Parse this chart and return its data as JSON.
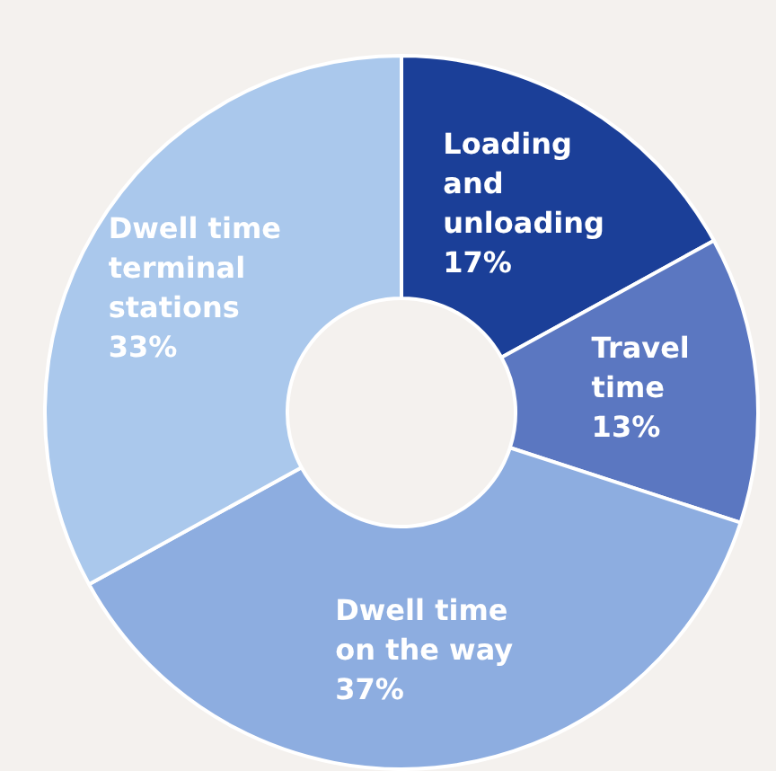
{
  "chart_data": {
    "type": "donut",
    "categories": [
      "Loading and unloading",
      "Travel time",
      "Dwell time on the way",
      "Dwell time terminal stations"
    ],
    "values": [
      17,
      13,
      37,
      33
    ],
    "colors": [
      "#1b3f98",
      "#5b77c1",
      "#8dade0",
      "#aac8ec"
    ],
    "value_labels": [
      "17%",
      "13%",
      "37%",
      "33%"
    ],
    "legend": false
  }
}
